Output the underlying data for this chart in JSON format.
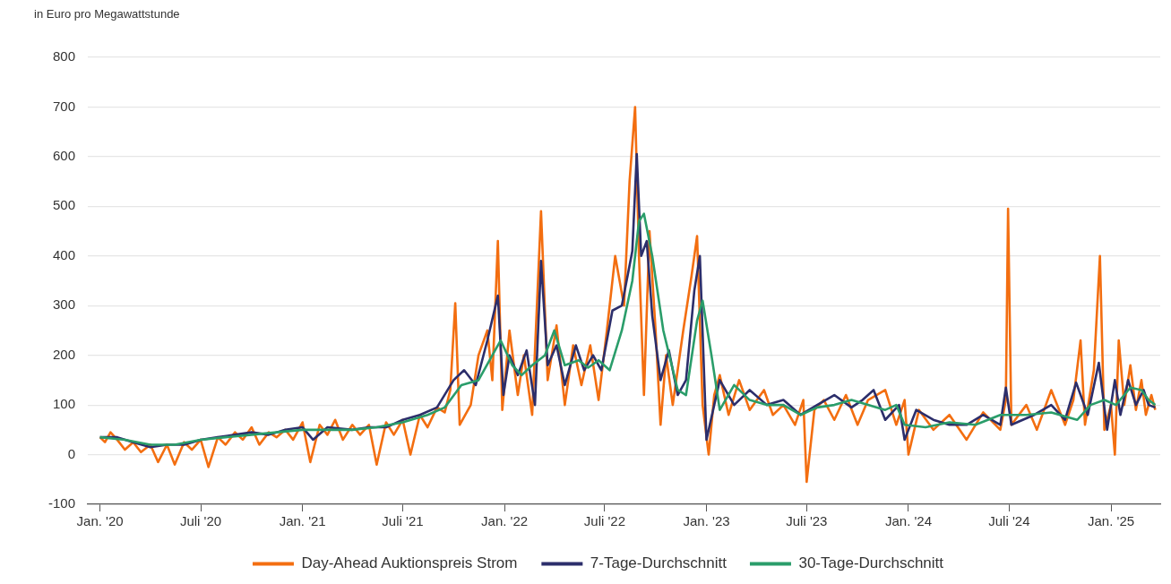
{
  "chart_data": {
    "type": "line",
    "ylabel": "in Euro pro Megawattstunde",
    "xlim": [
      "2019-12-10",
      "2025-03-31"
    ],
    "xticks": [
      {
        "value": "2020-01-01",
        "label": "Jan. '20"
      },
      {
        "value": "2020-07-01",
        "label": "Juli '20"
      },
      {
        "value": "2021-01-01",
        "label": "Jan. '21"
      },
      {
        "value": "2021-07-01",
        "label": "Juli '21"
      },
      {
        "value": "2022-01-01",
        "label": "Jan. '22"
      },
      {
        "value": "2022-07-01",
        "label": "Juli '22"
      },
      {
        "value": "2023-01-01",
        "label": "Jan. '23"
      },
      {
        "value": "2023-07-01",
        "label": "Juli '23"
      },
      {
        "value": "2024-01-01",
        "label": "Jan. '24"
      },
      {
        "value": "2024-07-01",
        "label": "Juli '24"
      },
      {
        "value": "2025-01-01",
        "label": "Jan. '25"
      }
    ],
    "ylim": [
      -100,
      800
    ],
    "yticks": [
      -100,
      0,
      100,
      200,
      300,
      400,
      500,
      600,
      700,
      800
    ],
    "grid": "y",
    "legend": "bottom",
    "line_style": "solid",
    "series": [
      {
        "name": "Day-Ahead Auktionspreis Strom",
        "color": "#f36e10",
        "x": [
          "2020-01-01",
          "2020-01-10",
          "2020-01-20",
          "2020-02-01",
          "2020-02-15",
          "2020-03-01",
          "2020-03-15",
          "2020-04-01",
          "2020-04-15",
          "2020-05-01",
          "2020-05-15",
          "2020-06-01",
          "2020-06-15",
          "2020-07-01",
          "2020-07-15",
          "2020-08-01",
          "2020-08-15",
          "2020-09-01",
          "2020-09-15",
          "2020-10-01",
          "2020-10-15",
          "2020-11-01",
          "2020-11-15",
          "2020-12-01",
          "2020-12-15",
          "2021-01-01",
          "2021-01-15",
          "2021-02-01",
          "2021-02-15",
          "2021-03-01",
          "2021-03-15",
          "2021-04-01",
          "2021-04-15",
          "2021-05-01",
          "2021-05-15",
          "2021-06-01",
          "2021-06-15",
          "2021-07-01",
          "2021-07-15",
          "2021-08-01",
          "2021-08-15",
          "2021-09-01",
          "2021-09-15",
          "2021-09-25",
          "2021-10-04",
          "2021-10-12",
          "2021-11-01",
          "2021-11-15",
          "2021-12-01",
          "2021-12-10",
          "2021-12-20",
          "2021-12-28",
          "2022-01-10",
          "2022-01-25",
          "2022-02-05",
          "2022-02-20",
          "2022-03-08",
          "2022-03-20",
          "2022-04-05",
          "2022-04-20",
          "2022-05-05",
          "2022-05-20",
          "2022-06-05",
          "2022-06-20",
          "2022-07-05",
          "2022-07-20",
          "2022-08-05",
          "2022-08-15",
          "2022-08-25",
          "2022-09-01",
          "2022-09-10",
          "2022-09-20",
          "2022-10-01",
          "2022-10-10",
          "2022-10-20",
          "2022-11-01",
          "2022-11-20",
          "2022-12-05",
          "2022-12-15",
          "2022-12-25",
          "2023-01-05",
          "2023-01-15",
          "2023-01-25",
          "2023-02-10",
          "2023-03-01",
          "2023-03-20",
          "2023-04-15",
          "2023-05-01",
          "2023-05-20",
          "2023-06-10",
          "2023-06-25",
          "2023-07-01",
          "2023-07-15",
          "2023-08-01",
          "2023-08-20",
          "2023-09-10",
          "2023-10-01",
          "2023-10-20",
          "2023-11-20",
          "2023-12-10",
          "2023-12-25",
          "2024-01-01",
          "2024-01-20",
          "2024-02-15",
          "2024-03-15",
          "2024-04-15",
          "2024-05-15",
          "2024-06-15",
          "2024-06-25",
          "2024-06-29",
          "2024-07-05",
          "2024-08-01",
          "2024-08-20",
          "2024-09-15",
          "2024-10-10",
          "2024-10-25",
          "2024-11-07",
          "2024-11-15",
          "2024-12-01",
          "2024-12-12",
          "2024-12-20",
          "2025-01-01",
          "2025-01-08",
          "2025-01-15",
          "2025-01-25",
          "2025-02-05",
          "2025-02-15",
          "2025-02-25",
          "2025-03-05",
          "2025-03-15",
          "2025-03-22"
        ],
        "values": [
          35,
          25,
          45,
          30,
          10,
          25,
          5,
          20,
          -15,
          20,
          -20,
          25,
          10,
          30,
          -25,
          35,
          20,
          45,
          30,
          55,
          20,
          45,
          35,
          50,
          30,
          65,
          -15,
          60,
          40,
          70,
          30,
          60,
          40,
          60,
          -20,
          65,
          40,
          70,
          0,
          80,
          55,
          95,
          85,
          130,
          305,
          60,
          100,
          200,
          250,
          150,
          430,
          90,
          250,
          120,
          200,
          80,
          490,
          150,
          260,
          100,
          220,
          140,
          220,
          110,
          250,
          400,
          300,
          550,
          700,
          400,
          120,
          450,
          250,
          60,
          200,
          100,
          250,
          360,
          440,
          100,
          0,
          120,
          160,
          80,
          150,
          90,
          130,
          80,
          100,
          60,
          110,
          -55,
          90,
          110,
          70,
          120,
          60,
          110,
          130,
          60,
          110,
          0,
          90,
          50,
          80,
          30,
          85,
          50,
          110,
          495,
          60,
          100,
          50,
          130,
          60,
          110,
          230,
          60,
          170,
          400,
          50,
          100,
          0,
          230,
          100,
          180,
          90,
          150,
          80,
          120,
          90
        ]
      },
      {
        "name": "7-Tage-Durchschnitt",
        "color": "#2c2e6b",
        "x": [
          "2020-01-01",
          "2020-02-01",
          "2020-03-01",
          "2020-04-01",
          "2020-05-01",
          "2020-06-01",
          "2020-07-01",
          "2020-08-01",
          "2020-09-01",
          "2020-10-01",
          "2020-11-01",
          "2020-12-01",
          "2021-01-01",
          "2021-01-20",
          "2021-02-15",
          "2021-04-01",
          "2021-05-01",
          "2021-06-01",
          "2021-07-01",
          "2021-08-01",
          "2021-09-01",
          "2021-10-01",
          "2021-10-20",
          "2021-11-10",
          "2021-12-01",
          "2021-12-20",
          "2021-12-30",
          "2022-01-10",
          "2022-01-25",
          "2022-02-10",
          "2022-02-25",
          "2022-03-08",
          "2022-03-20",
          "2022-04-05",
          "2022-04-20",
          "2022-05-10",
          "2022-05-25",
          "2022-06-10",
          "2022-06-25",
          "2022-07-15",
          "2022-08-01",
          "2022-08-20",
          "2022-08-28",
          "2022-09-05",
          "2022-09-15",
          "2022-09-25",
          "2022-10-10",
          "2022-10-25",
          "2022-11-10",
          "2022-11-25",
          "2022-12-10",
          "2022-12-20",
          "2023-01-01",
          "2023-01-15",
          "2023-01-25",
          "2023-02-20",
          "2023-03-20",
          "2023-04-20",
          "2023-05-20",
          "2023-06-20",
          "2023-07-20",
          "2023-08-20",
          "2023-09-20",
          "2023-10-10",
          "2023-10-30",
          "2023-11-20",
          "2023-12-15",
          "2023-12-25",
          "2024-01-15",
          "2024-02-15",
          "2024-03-15",
          "2024-04-15",
          "2024-05-15",
          "2024-06-15",
          "2024-06-25",
          "2024-07-05",
          "2024-08-15",
          "2024-09-15",
          "2024-10-10",
          "2024-10-30",
          "2024-11-20",
          "2024-12-10",
          "2024-12-25",
          "2025-01-08",
          "2025-01-18",
          "2025-02-01",
          "2025-02-15",
          "2025-03-01",
          "2025-03-10",
          "2025-03-22"
        ],
        "values": [
          35,
          35,
          25,
          15,
          20,
          20,
          30,
          35,
          40,
          45,
          40,
          50,
          55,
          30,
          55,
          50,
          55,
          55,
          70,
          80,
          95,
          150,
          170,
          140,
          230,
          320,
          120,
          200,
          160,
          210,
          100,
          390,
          180,
          220,
          140,
          220,
          170,
          200,
          170,
          290,
          300,
          410,
          605,
          400,
          430,
          280,
          150,
          210,
          120,
          150,
          330,
          400,
          30,
          100,
          150,
          100,
          130,
          100,
          110,
          80,
          100,
          120,
          95,
          110,
          130,
          70,
          100,
          30,
          90,
          70,
          60,
          60,
          80,
          60,
          135,
          60,
          80,
          100,
          70,
          145,
          80,
          185,
          50,
          150,
          80,
          150,
          100,
          130,
          100,
          95
        ]
      },
      {
        "name": "30-Tage-Durchschnitt",
        "color": "#2a9d6a",
        "x": [
          "2020-01-01",
          "2020-02-15",
          "2020-04-01",
          "2020-05-15",
          "2020-07-01",
          "2020-08-15",
          "2020-10-01",
          "2020-11-15",
          "2021-01-01",
          "2021-02-15",
          "2021-04-01",
          "2021-05-15",
          "2021-07-01",
          "2021-08-15",
          "2021-09-15",
          "2021-10-15",
          "2021-11-15",
          "2021-12-15",
          "2021-12-25",
          "2022-01-15",
          "2022-02-01",
          "2022-02-20",
          "2022-03-15",
          "2022-04-01",
          "2022-04-20",
          "2022-05-15",
          "2022-06-01",
          "2022-06-20",
          "2022-07-10",
          "2022-08-01",
          "2022-08-20",
          "2022-09-01",
          "2022-09-10",
          "2022-09-25",
          "2022-10-15",
          "2022-11-10",
          "2022-11-25",
          "2022-12-15",
          "2022-12-25",
          "2023-01-10",
          "2023-01-25",
          "2023-02-20",
          "2023-03-20",
          "2023-04-20",
          "2023-05-20",
          "2023-06-20",
          "2023-07-20",
          "2023-08-20",
          "2023-09-20",
          "2023-10-20",
          "2023-11-20",
          "2023-12-10",
          "2023-12-25",
          "2024-02-01",
          "2024-03-15",
          "2024-05-01",
          "2024-06-15",
          "2024-08-01",
          "2024-09-15",
          "2024-11-01",
          "2024-11-25",
          "2024-12-20",
          "2025-01-10",
          "2025-02-05",
          "2025-02-25",
          "2025-03-10",
          "2025-03-22"
        ],
        "values": [
          35,
          30,
          20,
          20,
          30,
          35,
          40,
          45,
          50,
          50,
          50,
          55,
          65,
          80,
          95,
          140,
          150,
          210,
          230,
          180,
          160,
          180,
          200,
          250,
          180,
          190,
          175,
          190,
          170,
          250,
          350,
          470,
          485,
          400,
          250,
          130,
          120,
          270,
          310,
          200,
          90,
          140,
          110,
          100,
          100,
          80,
          95,
          100,
          110,
          100,
          90,
          100,
          60,
          55,
          65,
          60,
          80,
          80,
          85,
          70,
          100,
          110,
          100,
          135,
          130,
          110,
          100
        ]
      }
    ]
  }
}
